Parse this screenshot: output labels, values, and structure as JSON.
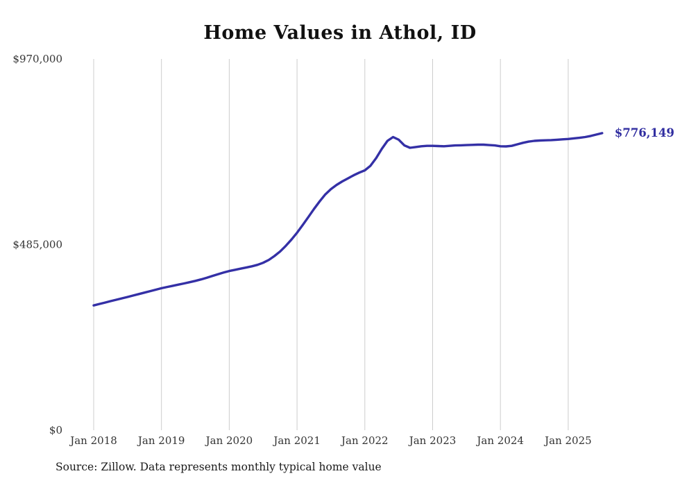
{
  "title": "Home Values in Athol, ID",
  "source_note": "Source: Zillow. Data represents monthly typical home value",
  "colors": {
    "line": "#3430a6",
    "grid": "#cccccc",
    "axis_text": "#333333",
    "end_label": "#302da0",
    "background": "#ffffff"
  },
  "chart_data": {
    "type": "line",
    "title": "Home Values in Athol, ID",
    "ylabel": "",
    "xlabel": "",
    "ylim": [
      0,
      970000
    ],
    "grid": "vertical",
    "legend": "none",
    "yticks": [
      {
        "value": 0,
        "label": "$0"
      },
      {
        "value": 485000,
        "label": "$485,000"
      },
      {
        "value": 970000,
        "label": "$970,000"
      }
    ],
    "xticks": [
      {
        "index": 0,
        "label": "Jan 2018"
      },
      {
        "index": 12,
        "label": "Jan 2019"
      },
      {
        "index": 24,
        "label": "Jan 2020"
      },
      {
        "index": 36,
        "label": "Jan 2021"
      },
      {
        "index": 48,
        "label": "Jan 2022"
      },
      {
        "index": 60,
        "label": "Jan 2023"
      },
      {
        "index": 72,
        "label": "Jan 2024"
      },
      {
        "index": 84,
        "label": "Jan 2025"
      }
    ],
    "x": [
      "2018-01",
      "2018-02",
      "2018-03",
      "2018-04",
      "2018-05",
      "2018-06",
      "2018-07",
      "2018-08",
      "2018-09",
      "2018-10",
      "2018-11",
      "2018-12",
      "2019-01",
      "2019-02",
      "2019-03",
      "2019-04",
      "2019-05",
      "2019-06",
      "2019-07",
      "2019-08",
      "2019-09",
      "2019-10",
      "2019-11",
      "2019-12",
      "2020-01",
      "2020-02",
      "2020-03",
      "2020-04",
      "2020-05",
      "2020-06",
      "2020-07",
      "2020-08",
      "2020-09",
      "2020-10",
      "2020-11",
      "2020-12",
      "2021-01",
      "2021-02",
      "2021-03",
      "2021-04",
      "2021-05",
      "2021-06",
      "2021-07",
      "2021-08",
      "2021-09",
      "2021-10",
      "2021-11",
      "2021-12",
      "2022-01",
      "2022-02",
      "2022-03",
      "2022-04",
      "2022-05",
      "2022-06",
      "2022-07",
      "2022-08",
      "2022-09",
      "2022-10",
      "2022-11",
      "2022-12",
      "2023-01",
      "2023-02",
      "2023-03",
      "2023-04",
      "2023-05",
      "2023-06",
      "2023-07",
      "2023-08",
      "2023-09",
      "2023-10",
      "2023-11",
      "2023-12",
      "2024-01",
      "2024-02",
      "2024-03",
      "2024-04",
      "2024-05",
      "2024-06",
      "2024-07",
      "2024-08",
      "2024-09",
      "2024-10",
      "2024-11",
      "2024-12",
      "2025-01",
      "2025-02",
      "2025-03",
      "2025-04",
      "2025-05",
      "2025-06",
      "2025-07"
    ],
    "values": [
      326000,
      329800,
      333500,
      337200,
      340800,
      344500,
      348200,
      351900,
      355700,
      359500,
      363300,
      367200,
      371000,
      374200,
      377300,
      380400,
      383500,
      386800,
      390200,
      394000,
      398200,
      402800,
      407500,
      412000,
      416000,
      419000,
      422000,
      425000,
      428200,
      432000,
      437500,
      445000,
      455000,
      467000,
      481500,
      498000,
      516000,
      536000,
      557000,
      578000,
      598000,
      616000,
      630000,
      641000,
      650000,
      658000,
      666000,
      673000,
      679000,
      691000,
      711000,
      735000,
      756000,
      766000,
      759000,
      744000,
      738000,
      740000,
      742000,
      743000,
      743000,
      742500,
      742000,
      743000,
      744000,
      744500,
      745000,
      745500,
      746000,
      746000,
      745000,
      744000,
      742000,
      741500,
      743000,
      747000,
      751000,
      754000,
      756000,
      757000,
      757500,
      758000,
      759000,
      760000,
      761000,
      762500,
      764000,
      766000,
      769000,
      772500,
      776149
    ],
    "annotation": {
      "text": "$776,149",
      "value": 776149
    }
  }
}
